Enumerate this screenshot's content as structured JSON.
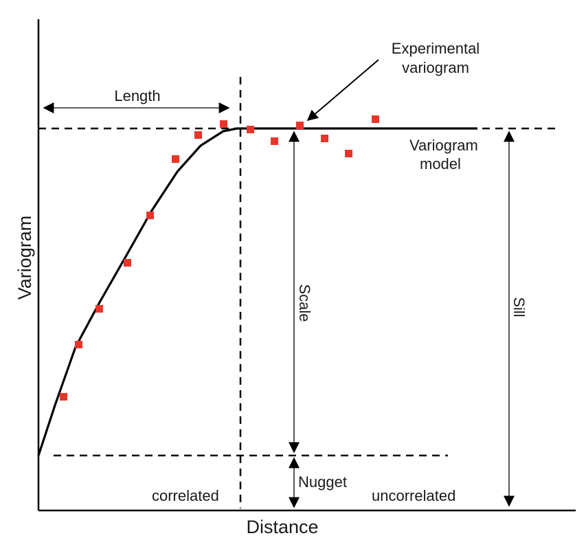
{
  "labels": {
    "x_axis": "Distance",
    "y_axis": "Variogram",
    "length": "Length",
    "experimental_line1": "Experimental",
    "experimental_line2": "variogram",
    "model_line1": "Variogram",
    "model_line2": "model",
    "scale": "Scale",
    "sill": "Sill",
    "nugget": "Nugget",
    "correlated": "correlated",
    "uncorrelated": "uncorrelated"
  },
  "colors": {
    "points": "#e8352b",
    "lines": "#000000"
  }
}
